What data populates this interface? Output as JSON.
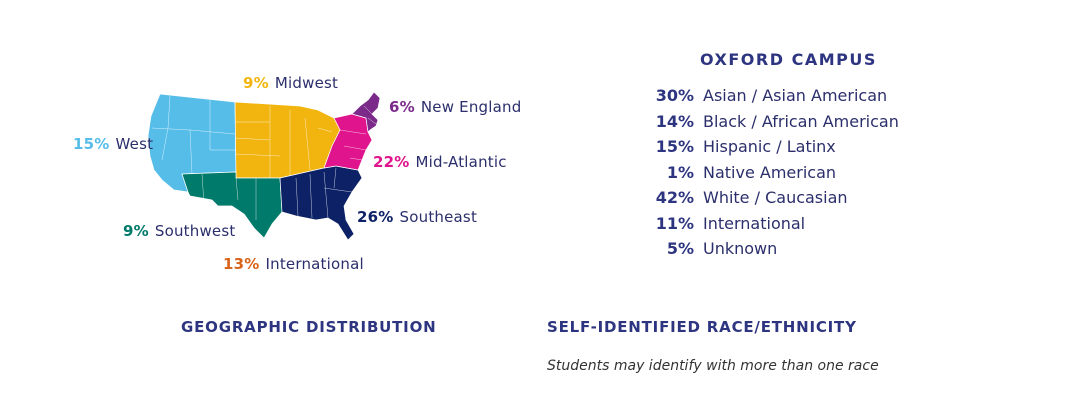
{
  "colors": {
    "west": "#56bde9",
    "southwest": "#007a6a",
    "midwest": "#f2b50f",
    "southeast": "#0d2266",
    "mid_atlantic": "#e0148c",
    "new_england": "#7b2a8a",
    "international": "#d8641c"
  },
  "map": {
    "regions": [
      {
        "id": "west",
        "pct": "15%",
        "label": "West"
      },
      {
        "id": "midwest",
        "pct": "9%",
        "label": "Midwest"
      },
      {
        "id": "new_england",
        "pct": "6%",
        "label": "New England"
      },
      {
        "id": "mid_atlantic",
        "pct": "22%",
        "label": "Mid-Atlantic"
      },
      {
        "id": "southeast",
        "pct": "26%",
        "label": "Southeast"
      },
      {
        "id": "southwest",
        "pct": "9%",
        "label": "Southwest"
      },
      {
        "id": "international",
        "pct": "13%",
        "label": "International"
      }
    ],
    "caption": "GEOGRAPHIC DISTRIBUTION"
  },
  "ethnicity": {
    "title": "OXFORD CAMPUS",
    "items": [
      {
        "pct": "30%",
        "label": "Asian / Asian American"
      },
      {
        "pct": "14%",
        "label": "Black / African American"
      },
      {
        "pct": "15%",
        "label": "Hispanic / Latinx"
      },
      {
        "pct": "1%",
        "label": "Native American"
      },
      {
        "pct": "42%",
        "label": "White / Caucasian"
      },
      {
        "pct": "11%",
        "label": "International"
      },
      {
        "pct": "5%",
        "label": "Unknown"
      }
    ],
    "caption": "SELF-IDENTIFIED RACE/ETHNICITY",
    "note": "Students may identify with more than one race"
  }
}
